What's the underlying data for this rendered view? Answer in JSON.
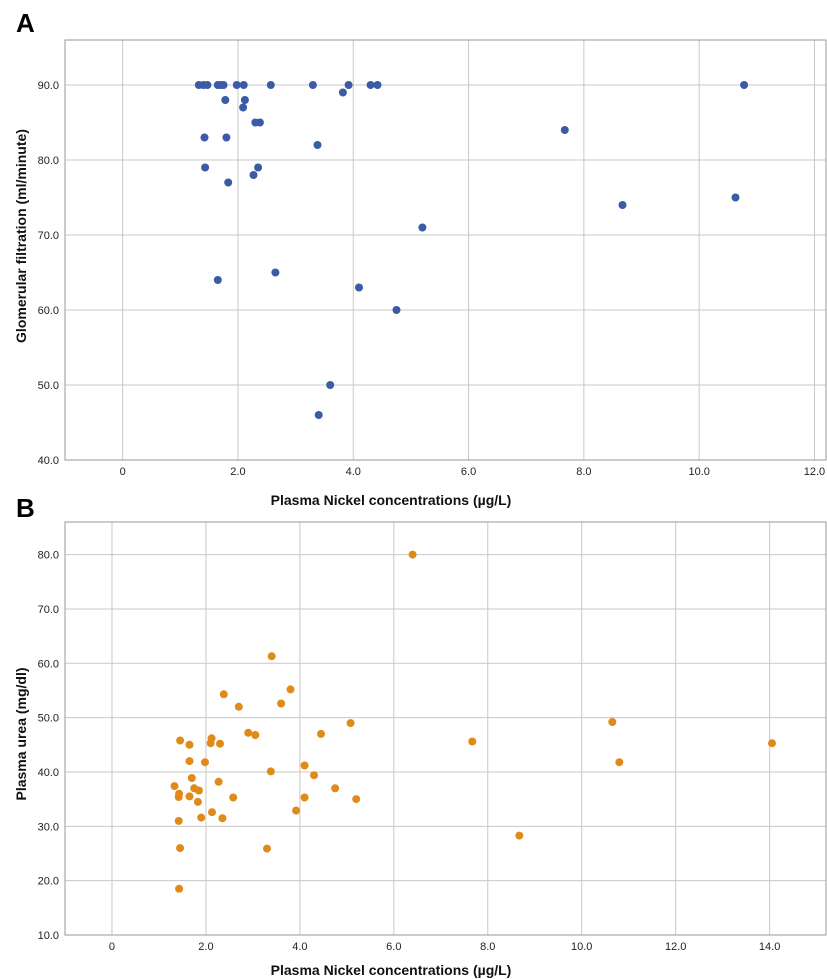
{
  "chart_data": [
    {
      "type": "scatter",
      "panel_label": "A",
      "xlabel": "Plasma Nickel concentrations (µg/L)",
      "ylabel": "Glomerular filtration (ml/minute)",
      "xlim": [
        -1.0,
        12.2
      ],
      "ylim": [
        40.0,
        96.0
      ],
      "x_ticks": [
        0,
        2,
        4,
        6,
        8,
        10,
        12
      ],
      "x_tick_labels": [
        "0",
        "2.0",
        "4.0",
        "6.0",
        "8.0",
        "10.0",
        "12.0"
      ],
      "y_ticks": [
        40,
        50,
        60,
        70,
        80,
        90
      ],
      "y_tick_labels": [
        "40.0",
        "50.0",
        "60.0",
        "70.0",
        "80.0",
        "90.0"
      ],
      "grid": true,
      "color": "#3b5ba5",
      "points": [
        {
          "x": 1.32,
          "y": 90
        },
        {
          "x": 1.4,
          "y": 90
        },
        {
          "x": 1.47,
          "y": 90
        },
        {
          "x": 1.65,
          "y": 90
        },
        {
          "x": 1.7,
          "y": 90
        },
        {
          "x": 1.75,
          "y": 90
        },
        {
          "x": 1.98,
          "y": 90
        },
        {
          "x": 2.1,
          "y": 90
        },
        {
          "x": 2.57,
          "y": 90
        },
        {
          "x": 3.3,
          "y": 90
        },
        {
          "x": 3.92,
          "y": 90
        },
        {
          "x": 4.3,
          "y": 90
        },
        {
          "x": 4.42,
          "y": 90
        },
        {
          "x": 10.78,
          "y": 90
        },
        {
          "x": 3.82,
          "y": 89
        },
        {
          "x": 1.78,
          "y": 88
        },
        {
          "x": 2.12,
          "y": 88
        },
        {
          "x": 2.09,
          "y": 87
        },
        {
          "x": 2.3,
          "y": 85
        },
        {
          "x": 2.38,
          "y": 85
        },
        {
          "x": 7.67,
          "y": 84
        },
        {
          "x": 1.42,
          "y": 83
        },
        {
          "x": 1.8,
          "y": 83
        },
        {
          "x": 3.38,
          "y": 82
        },
        {
          "x": 1.43,
          "y": 79
        },
        {
          "x": 2.35,
          "y": 79
        },
        {
          "x": 2.27,
          "y": 78
        },
        {
          "x": 1.83,
          "y": 77
        },
        {
          "x": 10.63,
          "y": 75
        },
        {
          "x": 8.67,
          "y": 74
        },
        {
          "x": 5.2,
          "y": 71
        },
        {
          "x": 2.65,
          "y": 65
        },
        {
          "x": 1.65,
          "y": 64
        },
        {
          "x": 4.1,
          "y": 63
        },
        {
          "x": 4.75,
          "y": 60
        },
        {
          "x": 3.6,
          "y": 50
        },
        {
          "x": 3.4,
          "y": 46
        }
      ]
    },
    {
      "type": "scatter",
      "panel_label": "B",
      "xlabel": "Plasma Nickel concentrations (µg/L)",
      "ylabel": "Plasma urea (mg/dl)",
      "xlim": [
        -1.0,
        15.2
      ],
      "ylim": [
        10.0,
        86.0
      ],
      "x_ticks": [
        0,
        2,
        4,
        6,
        8,
        10,
        12,
        14
      ],
      "x_tick_labels": [
        "0",
        "2.0",
        "4.0",
        "6.0",
        "8.0",
        "10.0",
        "12.0",
        "14.0"
      ],
      "y_ticks": [
        10,
        20,
        30,
        40,
        50,
        60,
        70,
        80
      ],
      "y_tick_labels": [
        "10.0",
        "20.0",
        "30.0",
        "40.0",
        "50.0",
        "60.0",
        "70.0",
        "80.0"
      ],
      "grid": true,
      "color": "#e08a1a",
      "points": [
        {
          "x": 6.4,
          "y": 80
        },
        {
          "x": 3.4,
          "y": 61.3
        },
        {
          "x": 3.8,
          "y": 55.2
        },
        {
          "x": 2.38,
          "y": 54.3
        },
        {
          "x": 3.6,
          "y": 52.6
        },
        {
          "x": 2.7,
          "y": 52.0
        },
        {
          "x": 10.65,
          "y": 49.2
        },
        {
          "x": 5.08,
          "y": 49.0
        },
        {
          "x": 2.9,
          "y": 47.2
        },
        {
          "x": 3.05,
          "y": 46.8
        },
        {
          "x": 4.45,
          "y": 47.0
        },
        {
          "x": 2.12,
          "y": 46.2
        },
        {
          "x": 1.45,
          "y": 45.8
        },
        {
          "x": 7.67,
          "y": 45.6
        },
        {
          "x": 14.05,
          "y": 45.3
        },
        {
          "x": 2.1,
          "y": 45.3
        },
        {
          "x": 2.3,
          "y": 45.2
        },
        {
          "x": 1.65,
          "y": 45.0
        },
        {
          "x": 1.65,
          "y": 42.0
        },
        {
          "x": 1.98,
          "y": 41.8
        },
        {
          "x": 10.8,
          "y": 41.8
        },
        {
          "x": 4.1,
          "y": 41.2
        },
        {
          "x": 3.38,
          "y": 40.1
        },
        {
          "x": 4.3,
          "y": 39.4
        },
        {
          "x": 1.7,
          "y": 38.9
        },
        {
          "x": 2.27,
          "y": 38.2
        },
        {
          "x": 1.33,
          "y": 37.4
        },
        {
          "x": 4.75,
          "y": 37.0
        },
        {
          "x": 1.75,
          "y": 37.0
        },
        {
          "x": 1.85,
          "y": 36.6
        },
        {
          "x": 1.43,
          "y": 36.0
        },
        {
          "x": 1.65,
          "y": 35.5
        },
        {
          "x": 1.42,
          "y": 35.4
        },
        {
          "x": 2.58,
          "y": 35.3
        },
        {
          "x": 4.1,
          "y": 35.3
        },
        {
          "x": 5.2,
          "y": 35.0
        },
        {
          "x": 1.83,
          "y": 34.5
        },
        {
          "x": 3.92,
          "y": 32.9
        },
        {
          "x": 2.13,
          "y": 32.6
        },
        {
          "x": 1.9,
          "y": 31.6
        },
        {
          "x": 2.35,
          "y": 31.5
        },
        {
          "x": 1.42,
          "y": 31.0
        },
        {
          "x": 8.67,
          "y": 28.3
        },
        {
          "x": 1.45,
          "y": 26.0
        },
        {
          "x": 3.3,
          "y": 25.9
        },
        {
          "x": 1.43,
          "y": 18.5
        }
      ]
    }
  ]
}
